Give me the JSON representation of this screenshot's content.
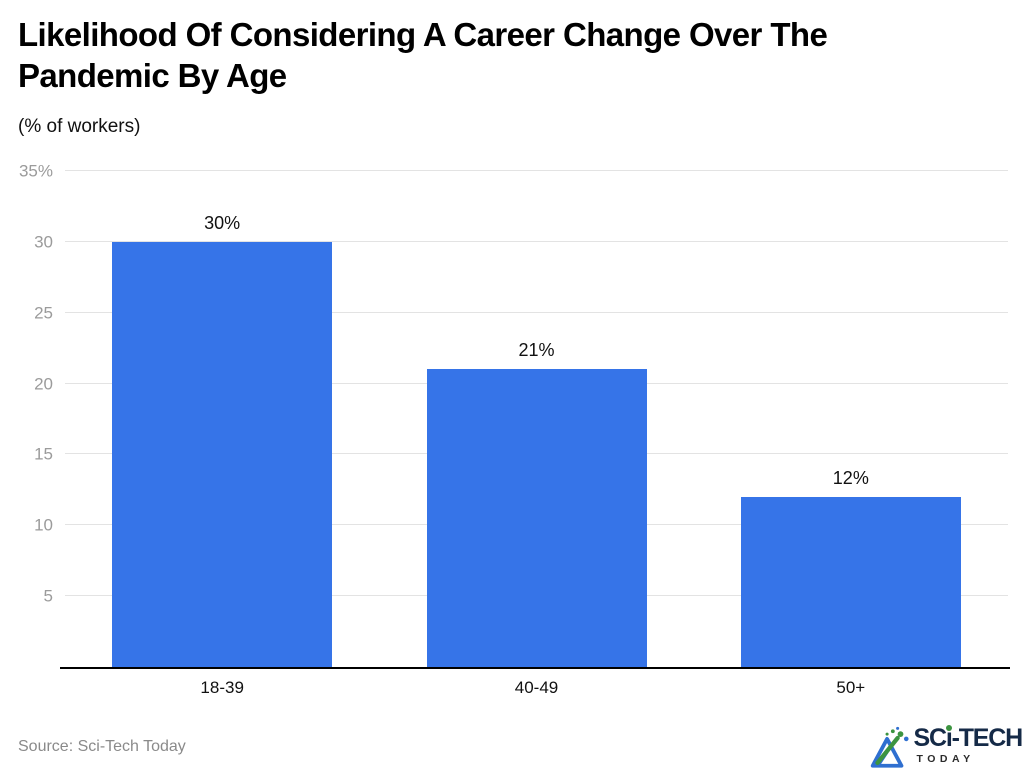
{
  "header": {
    "title": "Likelihood Of Considering A Career Change Over The Pandemic By Age",
    "title_lines": [
      "Likelihood Of Considering A Career Change Over The",
      "Pandemic By Age"
    ],
    "subtitle": "(% of workers)"
  },
  "chart_data": {
    "type": "bar",
    "title": "Likelihood Of Considering A Career Change Over The Pandemic By Age",
    "subtitle": "(% of workers)",
    "categories": [
      "18-39",
      "40-49",
      "50+"
    ],
    "values": [
      30,
      21,
      12
    ],
    "value_labels": [
      "30%",
      "21%",
      "12%"
    ],
    "xlabel": "",
    "ylabel": "% of workers",
    "ylim": [
      0,
      35
    ],
    "yticks": [
      {
        "label": "35%",
        "value": 35
      },
      {
        "label": "30",
        "value": 30
      },
      {
        "label": "25",
        "value": 25
      },
      {
        "label": "20",
        "value": 20
      },
      {
        "label": "15",
        "value": 15
      },
      {
        "label": "10",
        "value": 10
      },
      {
        "label": "5",
        "value": 5
      }
    ],
    "grid": true,
    "legend": false,
    "bar_color": "#3674e8",
    "gridline_color": "#e3e3e3",
    "axis_color": "#000000"
  },
  "footer": {
    "source_label": "Source: Sci-Tech Today",
    "logo": {
      "brand": "SCi-TECH",
      "brand_pre": "SC",
      "brand_i": "i",
      "brand_post": "-TECH",
      "tagline": "TODAY",
      "navy": "#152a47",
      "green": "#3c9440",
      "blue": "#2f6fd0"
    }
  }
}
